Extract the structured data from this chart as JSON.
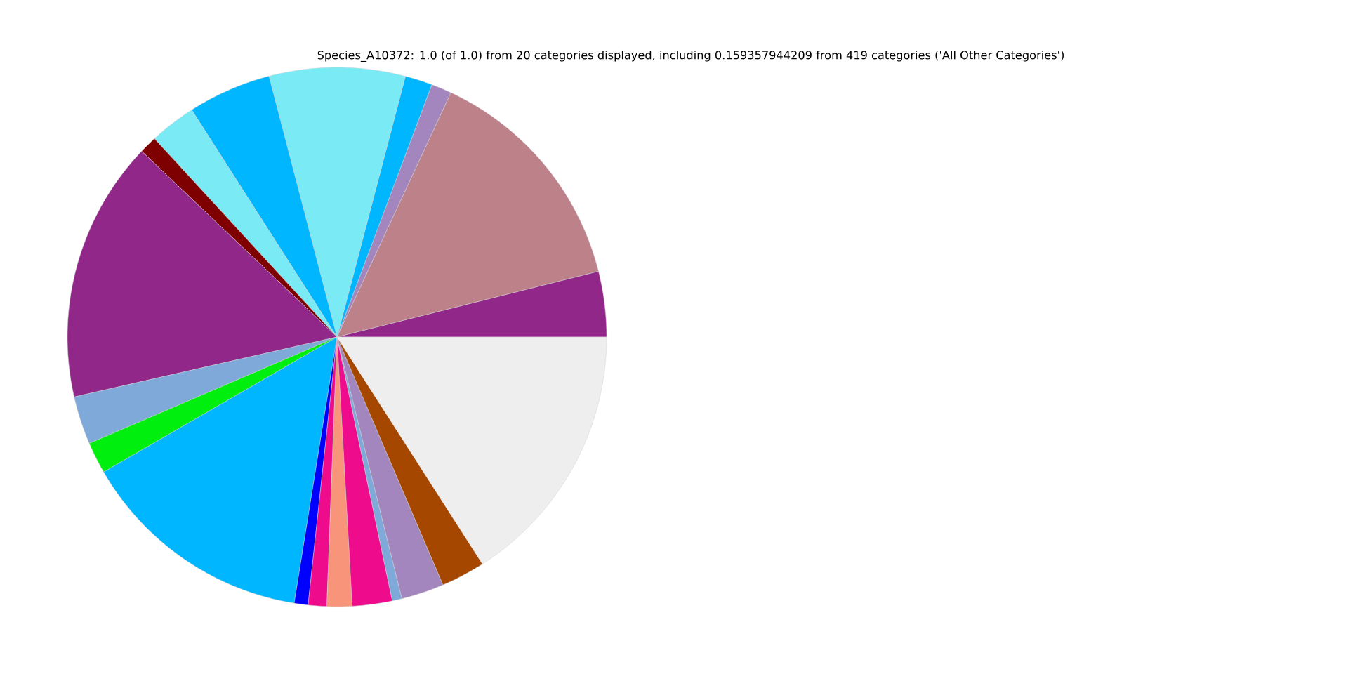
{
  "chart_data": {
    "type": "pie",
    "title": "Species_A10372: 1.0 (of 1.0) from 20 categories displayed, including 0.159357944209 from 419 categories ('All Other Categories')",
    "categories": [
      null,
      null,
      null,
      null,
      null,
      null,
      null,
      null,
      null,
      null,
      null,
      null,
      null,
      null,
      null,
      null,
      null,
      null,
      null,
      null
    ],
    "values": [
      3.92,
      14.14,
      1.22,
      1.64,
      8.14,
      5.0,
      2.78,
      1.06,
      15.67,
      2.89,
      1.89,
      14.11,
      0.83,
      1.11,
      1.5,
      2.39,
      0.58,
      2.56,
      2.64,
      15.93
    ],
    "colors": [
      "#912889",
      "#bc8189",
      "#a386be",
      "#00b6ff",
      "#7aebf4",
      "#00b6ff",
      "#7aebf4",
      "#7e0000",
      "#912889",
      "#7ea9d8",
      "#00ef0f",
      "#00b6ff",
      "#0000ff",
      "#ee0b8c",
      "#f8947a",
      "#ee0b8c",
      "#7ea9d8",
      "#a386be",
      "#a64700",
      "#eeeeee"
    ]
  }
}
